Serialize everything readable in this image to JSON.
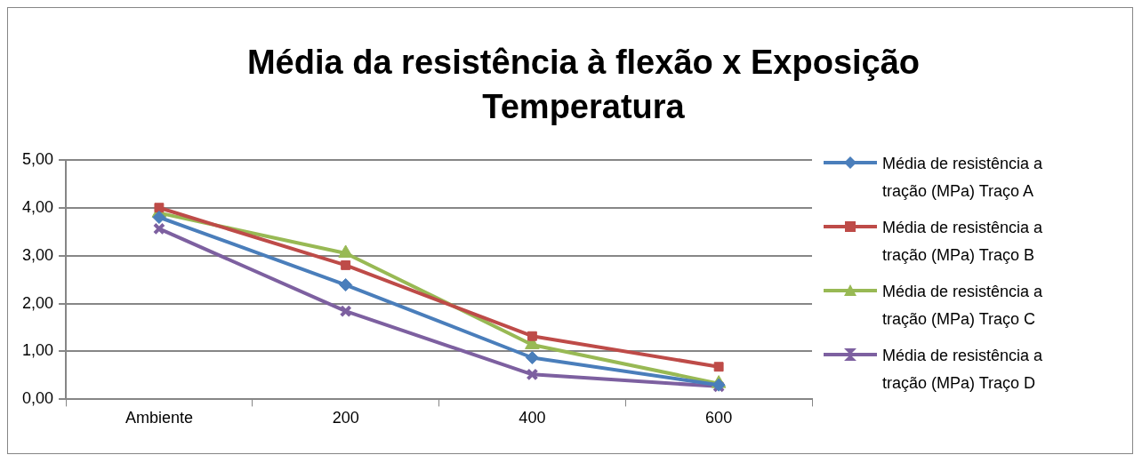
{
  "chart_data": {
    "type": "line",
    "title": "Média da resistência à flexão x Exposição Temperatura",
    "categories": [
      "Ambiente",
      "200",
      "400",
      "600"
    ],
    "series": [
      {
        "name": "Média de resistência a tração (MPa) Traço A",
        "color": "#4a7ebb",
        "marker": "diamond",
        "values": [
          3.8,
          2.39,
          0.87,
          0.3
        ]
      },
      {
        "name": "Média de resistência a tração (MPa) Traço B",
        "color": "#be4b48",
        "marker": "square",
        "values": [
          4.0,
          2.8,
          1.32,
          0.68
        ]
      },
      {
        "name": "Média de resistência a tração (MPa) Traço C",
        "color": "#98b954",
        "marker": "triangle",
        "values": [
          3.89,
          3.05,
          1.14,
          0.33
        ]
      },
      {
        "name": "Média de resistência a tração (MPa) Traço D",
        "color": "#7d60a0",
        "marker": "cross",
        "values": [
          3.56,
          1.84,
          0.52,
          0.27
        ]
      }
    ],
    "ylim": [
      0,
      5
    ],
    "yticks": [
      {
        "value": 0,
        "label": "0,00"
      },
      {
        "value": 1,
        "label": "1,00"
      },
      {
        "value": 2,
        "label": "2,00"
      },
      {
        "value": 3,
        "label": "3,00"
      },
      {
        "value": 4,
        "label": "4,00"
      },
      {
        "value": 5,
        "label": "5,00"
      }
    ],
    "grid": "y",
    "legend": "right",
    "line_style": "solid"
  }
}
